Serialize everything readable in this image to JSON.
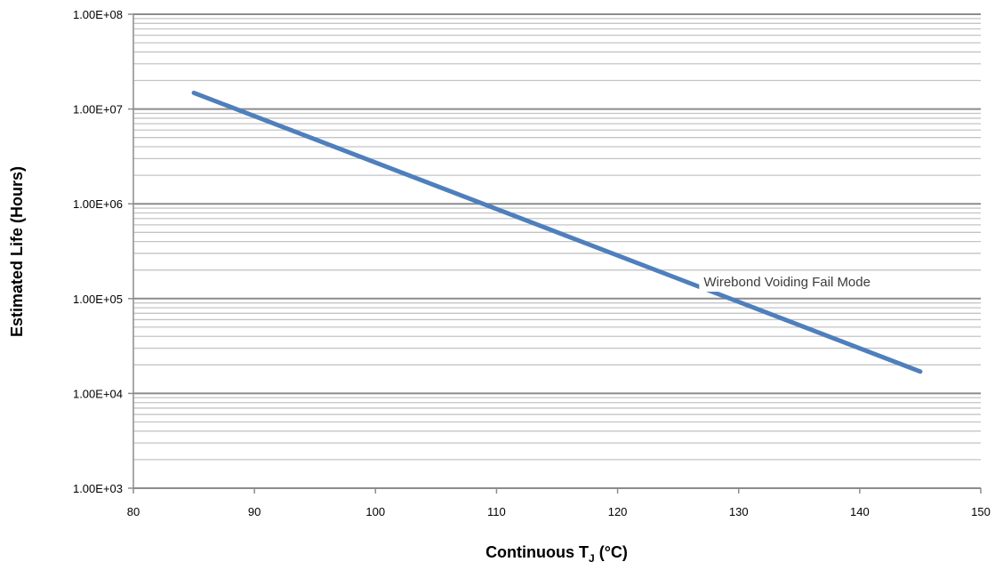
{
  "chart_data": {
    "type": "line",
    "title": "",
    "xlabel": "Continuous T",
    "xlabel_subscript": "J",
    "xlabel_suffix": " (°C)",
    "ylabel": "Estimated Life (Hours)",
    "xlim": [
      80,
      150
    ],
    "ylim": [
      1000,
      100000000
    ],
    "y_scale": "log",
    "x_ticks": [
      80,
      90,
      100,
      110,
      120,
      130,
      140,
      150
    ],
    "x_tick_labels": [
      "80",
      "90",
      "100",
      "110",
      "120",
      "130",
      "140",
      "150"
    ],
    "y_ticks": [
      1000,
      10000,
      100000,
      1000000,
      10000000,
      100000000
    ],
    "y_tick_labels": [
      "1.00E+03",
      "1.00E+04",
      "1.00E+05",
      "1.00E+06",
      "1.00E+07",
      "1.00E+08"
    ],
    "grid": true,
    "legend": "none",
    "series": [
      {
        "x": [
          85,
          145
        ],
        "y": [
          14800000,
          17000
        ],
        "color": "#4f7fbc"
      }
    ],
    "annotations": [
      {
        "text": "Wirebond Voiding Fail Mode",
        "x": 134,
        "y": 150000
      }
    ]
  }
}
